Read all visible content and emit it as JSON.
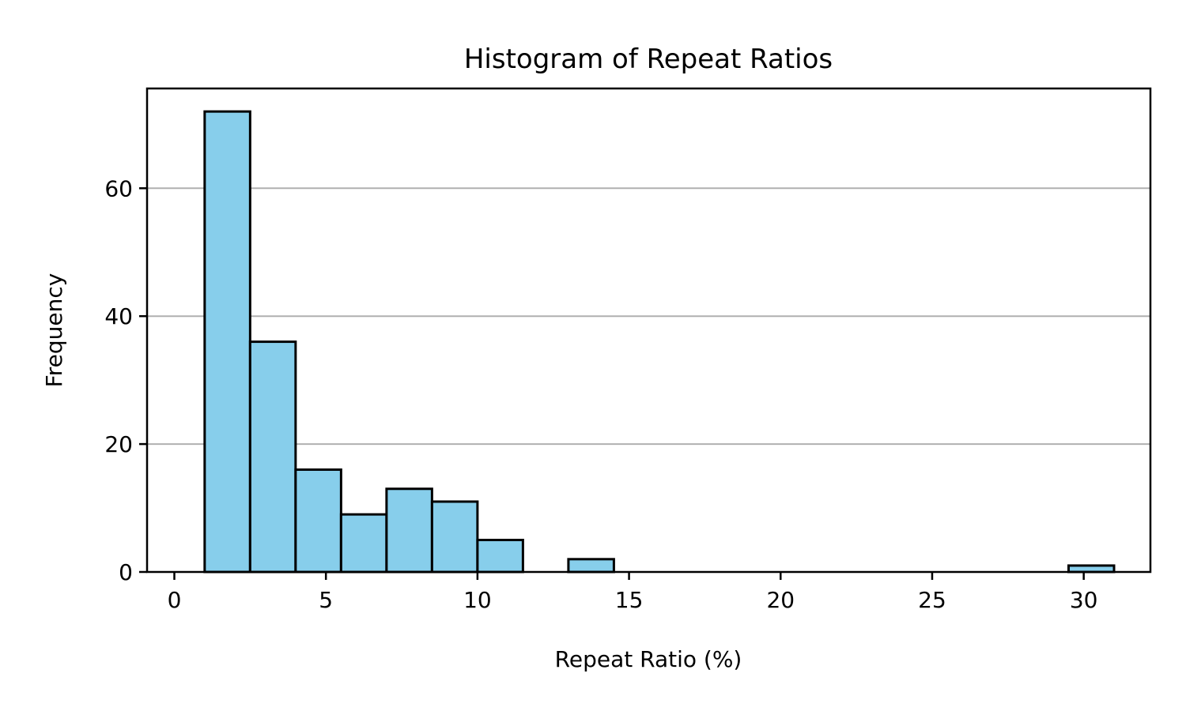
{
  "chart_data": {
    "type": "bar",
    "title": "Histogram of Repeat Ratios",
    "xlabel": "Repeat Ratio (%)",
    "ylabel": "Frequency",
    "bar_color": "#87ceeb",
    "edge_color": "#000000",
    "grid": "y",
    "xlim": [
      -0.9,
      32.2
    ],
    "ylim": [
      0,
      75.6
    ],
    "xticks": [
      0,
      5,
      10,
      15,
      20,
      25,
      30
    ],
    "yticks": [
      0,
      20,
      40,
      60
    ],
    "bin_edges": [
      1.0,
      2.5,
      4.0,
      5.5,
      7.0,
      8.5,
      10.0,
      11.5,
      13.0,
      14.5,
      16.0,
      17.5,
      19.0,
      20.5,
      22.0,
      23.5,
      25.0,
      26.5,
      28.0,
      29.5,
      31.0
    ],
    "counts": [
      72,
      36,
      16,
      9,
      13,
      11,
      5,
      0,
      2,
      0,
      0,
      0,
      0,
      0,
      0,
      0,
      0,
      0,
      0,
      1
    ]
  }
}
